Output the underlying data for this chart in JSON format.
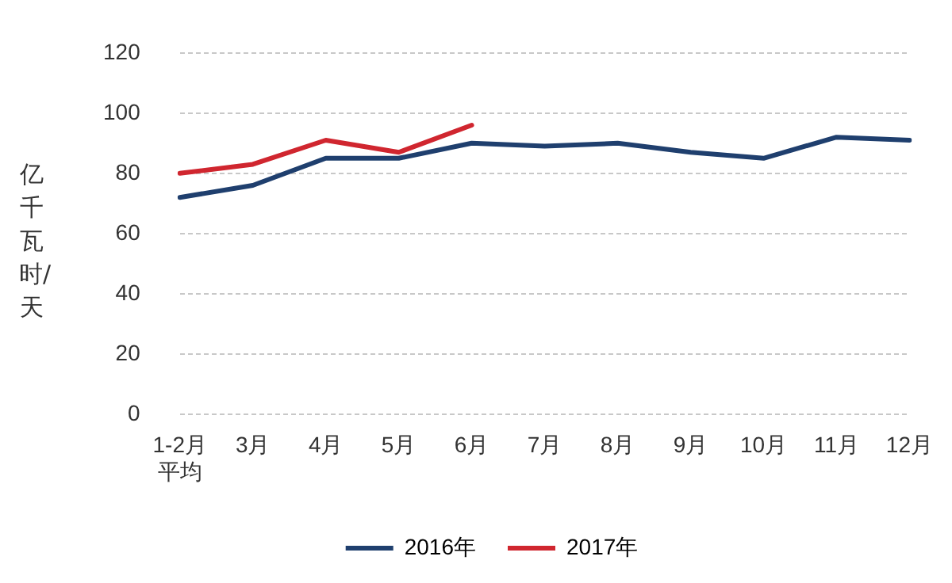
{
  "chart_data": {
    "type": "line",
    "ylabel": "亿千瓦时/天",
    "categories": [
      "1-2月平均",
      "3月",
      "4月",
      "5月",
      "6月",
      "7月",
      "8月",
      "9月",
      "10月",
      "11月",
      "12月"
    ],
    "series": [
      {
        "name": "2016年",
        "color": "#1f3f6e",
        "values": [
          72,
          76,
          85,
          85,
          90,
          89,
          90,
          87,
          85,
          92,
          91
        ]
      },
      {
        "name": "2017年",
        "color": "#d0262f",
        "values": [
          80,
          83,
          91,
          87,
          96,
          null,
          null,
          null,
          null,
          null,
          null
        ]
      }
    ],
    "ylim": [
      0,
      120
    ],
    "yticks": [
      0,
      20,
      40,
      60,
      80,
      100,
      120
    ],
    "grid": "y",
    "legend": "bottom",
    "marker": "none",
    "line_style": "solid"
  }
}
